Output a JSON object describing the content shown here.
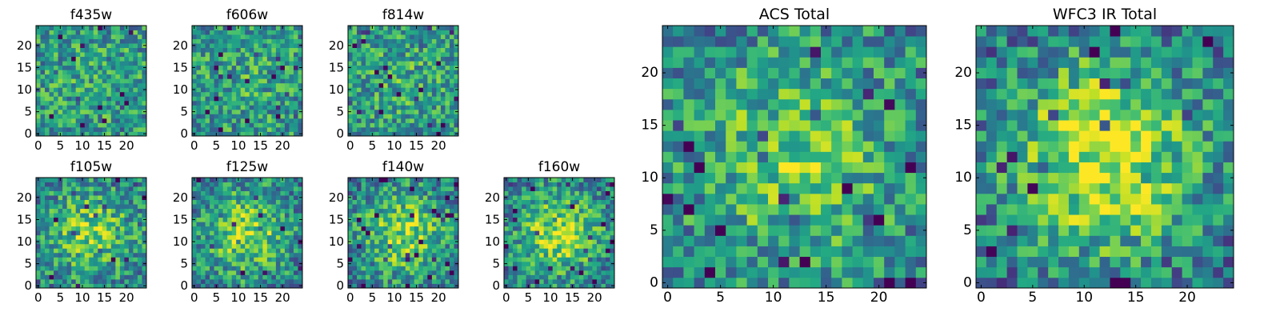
{
  "figure": {
    "colormap": "viridis",
    "colors": {
      "low": "#440154",
      "mid": "#21918c",
      "high": "#fde725",
      "frame": "#000000"
    }
  },
  "chart_data": [
    {
      "type": "heatmap",
      "title": "f435w",
      "grid": [
        25,
        25
      ],
      "xticks": [
        "0",
        "5",
        "10",
        "15",
        "20"
      ],
      "yticks": [
        "0",
        "5",
        "10",
        "15",
        "20"
      ],
      "xlim": [
        0,
        24
      ],
      "ylim": [
        0,
        24
      ],
      "seed": 11,
      "structure": 0.05
    },
    {
      "type": "heatmap",
      "title": "f606w",
      "grid": [
        25,
        25
      ],
      "xticks": [
        "0",
        "5",
        "10",
        "15",
        "20"
      ],
      "yticks": [
        "0",
        "5",
        "10",
        "15",
        "20"
      ],
      "xlim": [
        0,
        24
      ],
      "ylim": [
        0,
        24
      ],
      "seed": 23,
      "structure": 0.08
    },
    {
      "type": "heatmap",
      "title": "f814w",
      "grid": [
        25,
        25
      ],
      "xticks": [
        "0",
        "5",
        "10",
        "15",
        "20"
      ],
      "yticks": [
        "0",
        "5",
        "10",
        "15",
        "20"
      ],
      "xlim": [
        0,
        24
      ],
      "ylim": [
        0,
        24
      ],
      "seed": 37,
      "structure": 0.1
    },
    {
      "type": "heatmap",
      "title": "f105w",
      "grid": [
        25,
        25
      ],
      "xticks": [
        "0",
        "5",
        "10",
        "15",
        "20"
      ],
      "yticks": [
        "0",
        "5",
        "10",
        "15",
        "20"
      ],
      "xlim": [
        0,
        24
      ],
      "ylim": [
        0,
        24
      ],
      "seed": 41,
      "structure": 0.35
    },
    {
      "type": "heatmap",
      "title": "f125w",
      "grid": [
        25,
        25
      ],
      "xticks": [
        "0",
        "5",
        "10",
        "15",
        "20"
      ],
      "yticks": [
        "0",
        "5",
        "10",
        "15",
        "20"
      ],
      "xlim": [
        0,
        24
      ],
      "ylim": [
        0,
        24
      ],
      "seed": 53,
      "structure": 0.4
    },
    {
      "type": "heatmap",
      "title": "f140w",
      "grid": [
        25,
        25
      ],
      "xticks": [
        "0",
        "5",
        "10",
        "15",
        "20"
      ],
      "yticks": [
        "0",
        "5",
        "10",
        "15",
        "20"
      ],
      "xlim": [
        0,
        24
      ],
      "ylim": [
        0,
        24
      ],
      "seed": 67,
      "structure": 0.4
    },
    {
      "type": "heatmap",
      "title": "f160w",
      "grid": [
        25,
        25
      ],
      "xticks": [
        "0",
        "5",
        "10",
        "15",
        "20"
      ],
      "yticks": [
        "0",
        "5",
        "10",
        "15",
        "20"
      ],
      "xlim": [
        0,
        24
      ],
      "ylim": [
        0,
        24
      ],
      "seed": 71,
      "structure": 0.45
    },
    {
      "type": "heatmap",
      "title": "ACS Total",
      "grid": [
        25,
        25
      ],
      "xticks": [
        "0",
        "5",
        "10",
        "15",
        "20"
      ],
      "yticks": [
        "0",
        "5",
        "10",
        "15",
        "20"
      ],
      "xlim": [
        0,
        24
      ],
      "ylim": [
        0,
        24
      ],
      "seed": 83,
      "structure": 0.3
    },
    {
      "type": "heatmap",
      "title": "WFC3 IR Total",
      "grid": [
        25,
        25
      ],
      "xticks": [
        "0",
        "5",
        "10",
        "15",
        "20"
      ],
      "yticks": [
        "0",
        "5",
        "10",
        "15",
        "20"
      ],
      "xlim": [
        0,
        24
      ],
      "ylim": [
        0,
        24
      ],
      "seed": 97,
      "structure": 0.6
    }
  ]
}
